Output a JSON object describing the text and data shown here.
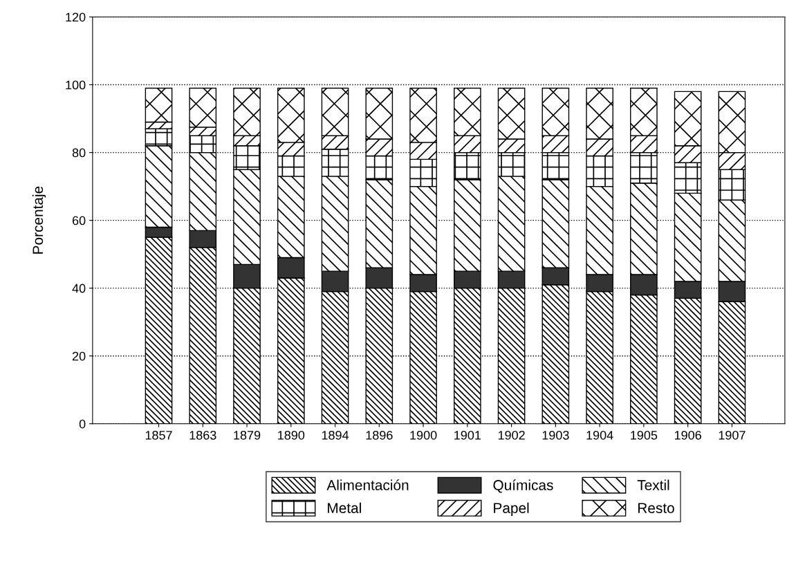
{
  "chart_data": {
    "type": "bar",
    "stacked": true,
    "ylabel": "Porcentaje",
    "categories": [
      "1857",
      "1863",
      "1879",
      "1890",
      "1894",
      "1896",
      "1900",
      "1901",
      "1902",
      "1903",
      "1904",
      "1905",
      "1906",
      "1907"
    ],
    "series": [
      {
        "name": "Alimentación",
        "color": "#000000",
        "values": [
          55,
          52,
          40,
          43,
          39,
          40,
          39,
          40,
          40,
          41,
          39,
          38,
          37,
          36
        ]
      },
      {
        "name": "Químicas",
        "color": "#333333",
        "values": [
          3,
          5,
          7,
          6,
          6,
          6,
          5,
          5,
          5,
          5,
          5,
          6,
          5,
          6
        ]
      },
      {
        "name": "Textil",
        "color": "#000000",
        "values": [
          24,
          23,
          28,
          24,
          28,
          26,
          26,
          27,
          28,
          26,
          26,
          27,
          26,
          24
        ]
      },
      {
        "name": "Metal",
        "color": "#000000",
        "values": [
          5,
          5,
          7,
          6,
          8,
          7,
          8,
          8,
          7,
          8,
          9,
          9,
          9,
          9
        ]
      },
      {
        "name": "Papel",
        "color": "#000000",
        "values": [
          2,
          2.5,
          3,
          4,
          4,
          5,
          5,
          5,
          4,
          5,
          5,
          5,
          5,
          5
        ]
      },
      {
        "name": "Resto",
        "color": "#000000",
        "values": [
          10,
          11.5,
          14,
          16,
          14,
          15,
          16,
          14,
          15,
          14,
          15,
          14,
          16,
          18
        ]
      }
    ],
    "ylim": [
      0,
      120
    ],
    "yticks": [
      0,
      20,
      40,
      60,
      80,
      100,
      120
    ],
    "grid": "y",
    "legend": "bottom"
  }
}
